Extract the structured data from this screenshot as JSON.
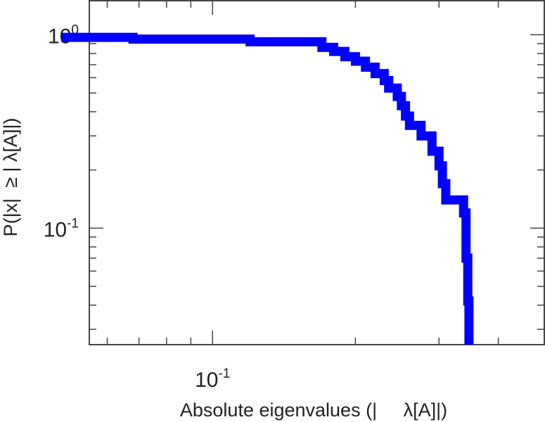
{
  "chart_data": {
    "type": "line",
    "title": "",
    "xlabel": "Absolute eigenvalues (|     λ[A]|)",
    "ylabel": "P(|x|  ≥ | λ[A]|)",
    "xscale": "log",
    "yscale": "log",
    "xlim": [
      0.055,
      0.5
    ],
    "ylim": [
      0.025,
      1.5
    ],
    "x_ticks": [
      {
        "value": 0.1,
        "base": "10",
        "exp": "-1"
      }
    ],
    "y_ticks": [
      {
        "value": 1,
        "base": "10",
        "exp": "0"
      },
      {
        "value": 0.1,
        "base": "10",
        "exp": "-1"
      }
    ],
    "grid": false,
    "line_style": "step",
    "series": [
      {
        "color": "#0000ff",
        "points": [
          [
            0.048,
            0.97
          ],
          [
            0.068,
            0.95
          ],
          [
            0.12,
            0.92
          ],
          [
            0.165,
            0.92
          ],
          [
            0.17,
            0.86
          ],
          [
            0.18,
            0.82
          ],
          [
            0.19,
            0.77
          ],
          [
            0.2,
            0.73
          ],
          [
            0.21,
            0.68
          ],
          [
            0.22,
            0.63
          ],
          [
            0.23,
            0.58
          ],
          [
            0.235,
            0.53
          ],
          [
            0.245,
            0.48
          ],
          [
            0.25,
            0.43
          ],
          [
            0.255,
            0.38
          ],
          [
            0.26,
            0.34
          ],
          [
            0.275,
            0.3
          ],
          [
            0.29,
            0.25
          ],
          [
            0.3,
            0.21
          ],
          [
            0.305,
            0.17
          ],
          [
            0.31,
            0.14
          ],
          [
            0.33,
            0.14
          ],
          [
            0.338,
            0.12
          ],
          [
            0.342,
            0.07
          ],
          [
            0.345,
            0.042
          ],
          [
            0.347,
            0.025
          ]
        ]
      }
    ]
  }
}
